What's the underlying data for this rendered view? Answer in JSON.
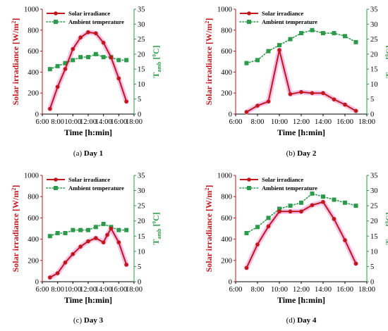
{
  "colors": {
    "irradiance": "#c0161c",
    "irradiance_glow": "#f3b6e4",
    "temperature": "#2c9a4a",
    "temp_axis": "#2e9a4a",
    "axis_left": "#c0161c"
  },
  "legend": {
    "irradiance": "Solar irradiance",
    "temperature": "Ambient temperature"
  },
  "axes": {
    "xlabel": "Time [h:min]",
    "ylabel_left": "Solar irradiance [W/m",
    "ylabel_left_sup": "2",
    "ylabel_left_end": "]",
    "ylabel_right_main": "T",
    "ylabel_right_sub": "amb",
    "ylabel_right_unit": " [",
    "ylabel_right_deg": "0",
    "ylabel_right_end": "C]"
  },
  "chart_data": [
    {
      "type": "line",
      "caption_prefix": "(a) ",
      "caption_bold": "Day 1",
      "x_tick_labels": [
        "6:00",
        "8:00",
        "10:00",
        "12:00",
        "14:00",
        "16:00",
        "18:00"
      ],
      "xlim": [
        6,
        18
      ],
      "ylim_left": [
        0,
        1000
      ],
      "ylim_right": [
        0,
        35
      ],
      "yticks_left": [
        0,
        200,
        400,
        600,
        800,
        1000
      ],
      "yticks_right": [
        0,
        5,
        10,
        15,
        20,
        25,
        30,
        35
      ],
      "legend_position": "top-left",
      "grid": false,
      "series": [
        {
          "axis": "left",
          "x": [
            7,
            8,
            9,
            10,
            11,
            12,
            13,
            14,
            15,
            16,
            17
          ],
          "values": [
            50,
            260,
            430,
            620,
            730,
            780,
            770,
            680,
            540,
            340,
            120
          ]
        },
        {
          "axis": "right",
          "x": [
            7,
            8,
            9,
            10,
            11,
            12,
            13,
            14,
            15,
            16,
            17
          ],
          "values": [
            15,
            16,
            17,
            18,
            19,
            19,
            20,
            19,
            19,
            18,
            18
          ]
        }
      ]
    },
    {
      "type": "line",
      "caption_prefix": "(b) ",
      "caption_bold": "Day 2",
      "x_tick_labels": [
        "6:00",
        "8:00",
        "10:00",
        "12:00",
        "14:00",
        "16:00",
        "18:00"
      ],
      "xlim": [
        6,
        18
      ],
      "ylim_left": [
        0,
        1000
      ],
      "ylim_right": [
        0,
        35
      ],
      "yticks_left": [
        0,
        200,
        400,
        600,
        800,
        1000
      ],
      "yticks_right": [
        0,
        5,
        10,
        15,
        20,
        25,
        30,
        35
      ],
      "legend_position": "top-left",
      "grid": false,
      "series": [
        {
          "axis": "left",
          "x": [
            7,
            8,
            9,
            10,
            11,
            12,
            13,
            14,
            15,
            16,
            17
          ],
          "values": [
            20,
            80,
            120,
            610,
            190,
            210,
            200,
            200,
            140,
            90,
            30
          ]
        },
        {
          "axis": "right",
          "x": [
            7,
            8,
            9,
            10,
            11,
            12,
            13,
            14,
            15,
            16,
            17
          ],
          "values": [
            17,
            18,
            21,
            23,
            25,
            27,
            28,
            27,
            27,
            26,
            24
          ]
        }
      ]
    },
    {
      "type": "line",
      "caption_prefix": "(c) ",
      "caption_bold": "Day 3",
      "x_tick_labels": [
        "6:00",
        "8:00",
        "10:00",
        "12:00",
        "14:00",
        "16:00",
        "18:00"
      ],
      "xlim": [
        6,
        18
      ],
      "ylim_left": [
        0,
        1000
      ],
      "ylim_right": [
        0,
        35
      ],
      "yticks_left": [
        0,
        200,
        400,
        600,
        800,
        1000
      ],
      "yticks_right": [
        0,
        5,
        10,
        15,
        20,
        25,
        30,
        35
      ],
      "legend_position": "top-left",
      "grid": false,
      "series": [
        {
          "axis": "left",
          "x": [
            7,
            8,
            9,
            10,
            11,
            12,
            13,
            14,
            14.5,
            15,
            16,
            17
          ],
          "values": [
            40,
            80,
            180,
            260,
            330,
            380,
            410,
            370,
            440,
            500,
            370,
            160
          ]
        },
        {
          "axis": "right",
          "x": [
            7,
            8,
            9,
            10,
            11,
            12,
            13,
            14,
            15,
            16,
            17
          ],
          "values": [
            15,
            16,
            16,
            17,
            17,
            17,
            18,
            19,
            18,
            17,
            17
          ]
        }
      ]
    },
    {
      "type": "line",
      "caption_prefix": "(d) ",
      "caption_bold": "Day 4",
      "x_tick_labels": [
        "6:00",
        "8:00",
        "10:00",
        "12:00",
        "14:00",
        "16:00",
        "18:00"
      ],
      "xlim": [
        6,
        18
      ],
      "ylim_left": [
        0,
        1000
      ],
      "ylim_right": [
        0,
        35
      ],
      "yticks_left": [
        0,
        200,
        400,
        600,
        800,
        1000
      ],
      "yticks_right": [
        0,
        5,
        10,
        15,
        20,
        25,
        30,
        35
      ],
      "legend_position": "top-left",
      "grid": false,
      "series": [
        {
          "axis": "left",
          "x": [
            7,
            8,
            9,
            10,
            11,
            12,
            13,
            14,
            15,
            16,
            17
          ],
          "values": [
            130,
            350,
            520,
            660,
            660,
            660,
            720,
            750,
            590,
            390,
            170
          ]
        },
        {
          "axis": "right",
          "x": [
            7,
            8,
            9,
            10,
            11,
            12,
            13,
            14,
            15,
            16,
            17
          ],
          "values": [
            16,
            18,
            21,
            24,
            25,
            26,
            29,
            28,
            27,
            26,
            25
          ]
        }
      ]
    }
  ]
}
